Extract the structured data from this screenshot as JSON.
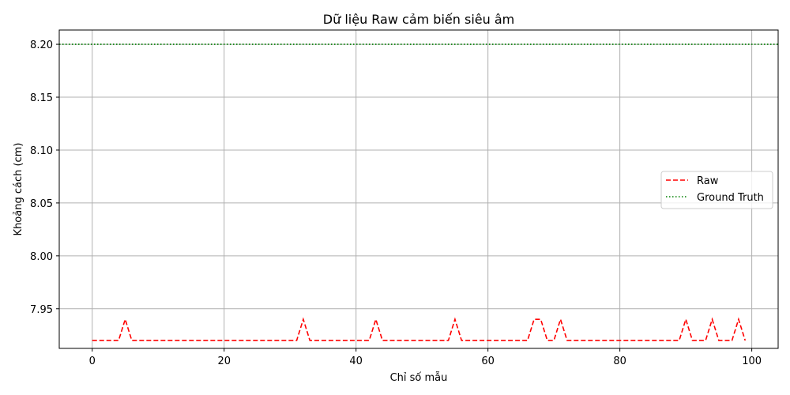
{
  "chart_data": {
    "type": "line",
    "title": "Dữ liệu Raw cảm biến siêu âm",
    "xlabel": "Chỉ số mẫu",
    "ylabel": "Khoảng cách (cm)",
    "xlim": [
      -5,
      104
    ],
    "ylim": [
      7.9125,
      8.2135
    ],
    "xticks": [
      0,
      20,
      40,
      60,
      80,
      100
    ],
    "yticks": [
      7.95,
      8.0,
      8.05,
      8.1,
      8.15,
      8.2
    ],
    "ytick_labels": [
      "7.95",
      "8.00",
      "8.05",
      "8.10",
      "8.15",
      "8.20"
    ],
    "grid": true,
    "legend_position": "center-right",
    "series": [
      {
        "name": "Raw",
        "color": "#ff0000",
        "style": "dashed",
        "x": [
          0,
          1,
          2,
          3,
          4,
          5,
          6,
          7,
          8,
          9,
          10,
          11,
          12,
          13,
          14,
          15,
          16,
          17,
          18,
          19,
          20,
          21,
          22,
          23,
          24,
          25,
          26,
          27,
          28,
          29,
          30,
          31,
          32,
          33,
          34,
          35,
          36,
          37,
          38,
          39,
          40,
          41,
          42,
          43,
          44,
          45,
          46,
          47,
          48,
          49,
          50,
          51,
          52,
          53,
          54,
          55,
          56,
          57,
          58,
          59,
          60,
          61,
          62,
          63,
          64,
          65,
          66,
          67,
          68,
          69,
          70,
          71,
          72,
          73,
          74,
          75,
          76,
          77,
          78,
          79,
          80,
          81,
          82,
          83,
          84,
          85,
          86,
          87,
          88,
          89,
          90,
          91,
          92,
          93,
          94,
          95,
          96,
          97,
          98,
          99
        ],
        "y": [
          7.92,
          7.92,
          7.92,
          7.92,
          7.92,
          7.94,
          7.92,
          7.92,
          7.92,
          7.92,
          7.92,
          7.92,
          7.92,
          7.92,
          7.92,
          7.92,
          7.92,
          7.92,
          7.92,
          7.92,
          7.92,
          7.92,
          7.92,
          7.92,
          7.92,
          7.92,
          7.92,
          7.92,
          7.92,
          7.92,
          7.92,
          7.92,
          7.94,
          7.92,
          7.92,
          7.92,
          7.92,
          7.92,
          7.92,
          7.92,
          7.92,
          7.92,
          7.92,
          7.94,
          7.92,
          7.92,
          7.92,
          7.92,
          7.92,
          7.92,
          7.92,
          7.92,
          7.92,
          7.92,
          7.92,
          7.94,
          7.92,
          7.92,
          7.92,
          7.92,
          7.92,
          7.92,
          7.92,
          7.92,
          7.92,
          7.92,
          7.92,
          7.94,
          7.94,
          7.92,
          7.92,
          7.94,
          7.92,
          7.92,
          7.92,
          7.92,
          7.92,
          7.92,
          7.92,
          7.92,
          7.92,
          7.92,
          7.92,
          7.92,
          7.92,
          7.92,
          7.92,
          7.92,
          7.92,
          7.92,
          7.94,
          7.92,
          7.92,
          7.92,
          7.94,
          7.92,
          7.92,
          7.92,
          7.94,
          7.92
        ]
      },
      {
        "name": "Ground Truth",
        "color": "#008000",
        "style": "dotted",
        "value": 8.2
      }
    ]
  }
}
